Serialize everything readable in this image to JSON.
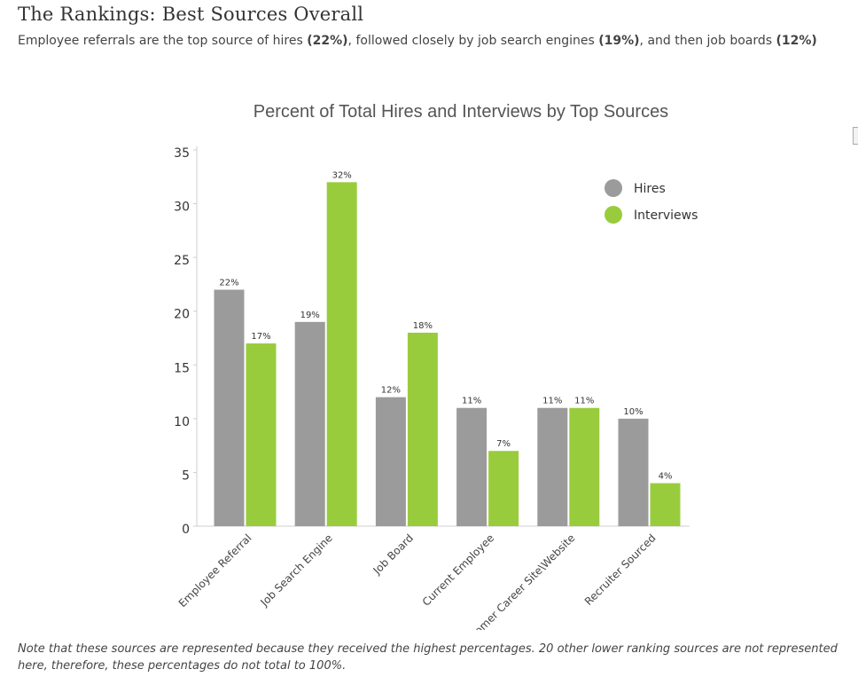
{
  "header": {
    "title": "The Rankings: Best Sources Overall",
    "subtitle_parts": {
      "p1": "Employee referrals are the top source of hires ",
      "b1": "(22%)",
      "p2": ", followed closely by job search engines ",
      "b2": "(19%)",
      "p3": ", and then job boards ",
      "b3": "(12%)"
    }
  },
  "chart_data": {
    "type": "bar",
    "title": "Percent of Total Hires and Interviews by Top Sources",
    "categories": [
      "Employee Referral",
      "Job Search Engine",
      "Job Board",
      "Current Employee",
      "Customer Career Site\\Website",
      "Recruiter Sourced"
    ],
    "series": [
      {
        "name": "Hires",
        "color": "#9b9b9b",
        "values": [
          22,
          19,
          12,
          11,
          11,
          10
        ]
      },
      {
        "name": "Interviews",
        "color": "#99cc3c",
        "values": [
          17,
          32,
          18,
          7,
          11,
          4
        ]
      }
    ],
    "ylim": [
      0,
      35
    ],
    "yticks": [
      0,
      5,
      10,
      15,
      20,
      25,
      30,
      35
    ],
    "xlabel": "",
    "ylabel": "",
    "legend": "top-right",
    "value_suffix": "%"
  },
  "footer": {
    "note": "Note that these sources are represented because they received the highest percentages. 20 other lower ranking sources are not represented here, therefore, these percentages do not total to 100%."
  }
}
